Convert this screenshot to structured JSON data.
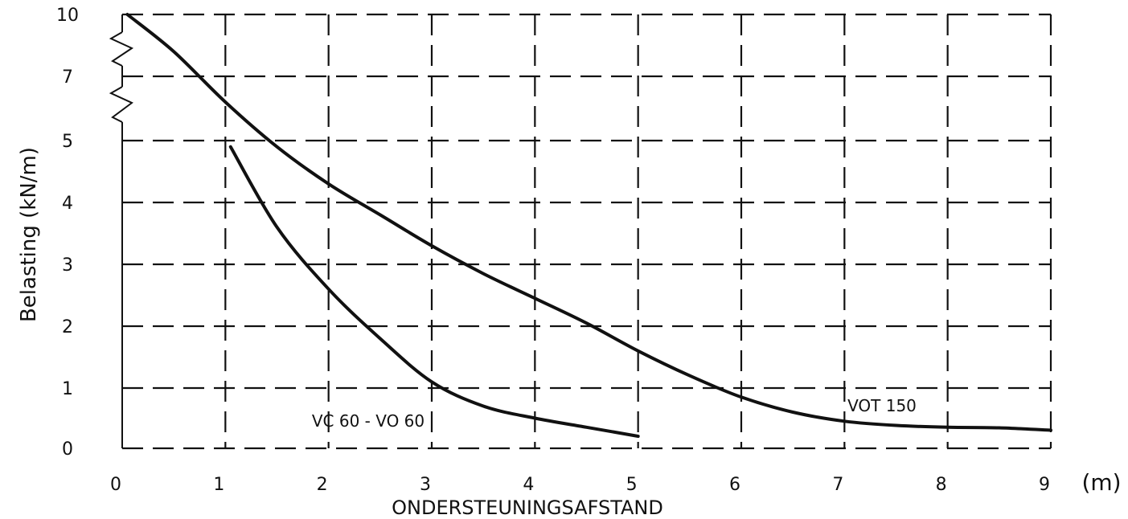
{
  "chart_data": {
    "type": "line",
    "xlabel": "ONDERSTEUNINGSAFSTAND",
    "x_unit": "(m)",
    "ylabel": "Belasting (kN/m)",
    "x_ticks": [
      "0",
      "1",
      "2",
      "3",
      "4",
      "5",
      "6",
      "7",
      "8",
      "9"
    ],
    "y_ticks": [
      "0",
      "1",
      "2",
      "3",
      "4",
      "5",
      "7",
      "10"
    ],
    "xlim": [
      0,
      9
    ],
    "ylim": [
      0,
      10
    ],
    "y_axis_break": true,
    "grid": true,
    "series": [
      {
        "name": "VOT 150",
        "x": [
          0.05,
          0.5,
          1.0,
          1.5,
          2.0,
          2.5,
          3.0,
          3.5,
          4.0,
          4.5,
          5.0,
          5.5,
          6.0,
          6.5,
          7.0,
          7.5,
          8.0,
          8.5,
          9.0
        ],
        "y": [
          10,
          8.2,
          6.2,
          4.9,
          4.3,
          3.8,
          3.3,
          2.85,
          2.45,
          2.05,
          1.6,
          1.2,
          0.85,
          0.6,
          0.45,
          0.38,
          0.35,
          0.34,
          0.3
        ]
      },
      {
        "name": "VC 60 - VO 60",
        "x": [
          1.05,
          1.5,
          2.0,
          2.5,
          3.0,
          3.5,
          4.0,
          4.5,
          5.0
        ],
        "y": [
          4.9,
          3.6,
          2.6,
          1.8,
          1.1,
          0.7,
          0.5,
          0.35,
          0.2
        ]
      }
    ]
  }
}
